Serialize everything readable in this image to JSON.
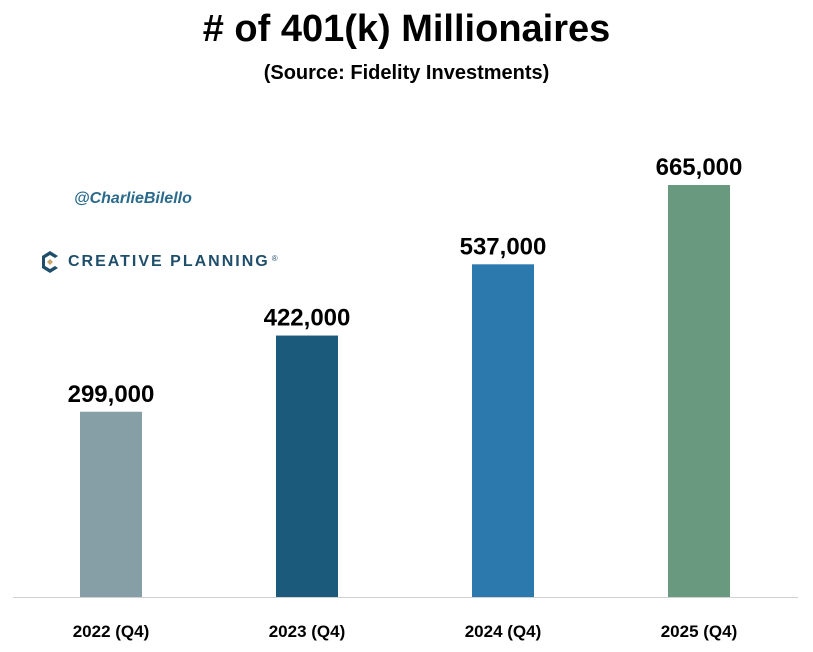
{
  "header": {
    "title": "# of 401(k) Millionaires",
    "subtitle": "(Source: Fidelity Investments)"
  },
  "watermark": {
    "handle": "@CharlieBilello",
    "brand": "CREATIVE PLANNING",
    "brand_mark": "®",
    "logo_icon": "creative-planning-logo-icon"
  },
  "chart_data": {
    "type": "bar",
    "title": "# of 401(k) Millionaires",
    "subtitle": "(Source: Fidelity Investments)",
    "categories": [
      "2022 (Q4)",
      "2023 (Q4)",
      "2024 (Q4)",
      "2025 (Q4)"
    ],
    "values": [
      299000,
      422000,
      537000,
      665000
    ],
    "value_labels": [
      "299,000",
      "422,000",
      "537,000",
      "665,000"
    ],
    "colors": [
      "#869fa6",
      "#1b5a7a",
      "#2b79ad",
      "#699a7f"
    ],
    "xlabel": "",
    "ylabel": "",
    "ylim": [
      0,
      800000
    ],
    "grid": false,
    "legend": "none"
  }
}
